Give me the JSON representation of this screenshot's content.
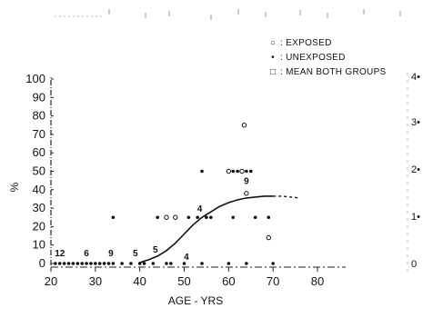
{
  "chart_data": {
    "type": "scatter",
    "title": "",
    "xlabel": "AGE - YRS",
    "ylabel": "%",
    "xlim": [
      20,
      80
    ],
    "ylim": [
      0,
      100
    ],
    "x_ticks": [
      "20",
      "30",
      "40",
      "50",
      "60",
      "70",
      "80"
    ],
    "y_ticks": [
      "0",
      "10",
      "20",
      "30",
      "40",
      "50",
      "60",
      "70",
      "80",
      "90",
      "100"
    ],
    "right_ticks": [
      "0",
      "1•",
      "2•",
      "3•",
      "4•"
    ],
    "grid": false,
    "legend_position": "top-right",
    "legend": [
      {
        "marker": "○",
        "label": "EXPOSED"
      },
      {
        "marker": "•",
        "label": "UNEXPOSED"
      },
      {
        "marker": "□",
        "label": "MEAN  BOTH GROUPS"
      }
    ],
    "series": [
      {
        "name": "EXPOSED",
        "marker": "open-circle",
        "points": [
          [
            63.5,
            75
          ],
          [
            64,
            38
          ],
          [
            69,
            14
          ],
          [
            46,
            25
          ],
          [
            48,
            25
          ],
          [
            60,
            50
          ],
          [
            63,
            50
          ]
        ]
      },
      {
        "name": "UNEXPOSED",
        "marker": "dot",
        "points": [
          [
            34,
            25
          ],
          [
            44,
            25
          ],
          [
            51,
            25
          ],
          [
            53,
            25
          ],
          [
            54,
            50
          ],
          [
            55,
            25
          ],
          [
            56,
            25
          ],
          [
            61,
            50
          ],
          [
            62,
            50
          ],
          [
            64,
            50
          ],
          [
            65,
            50
          ],
          [
            61,
            25
          ],
          [
            66,
            25
          ],
          [
            69,
            25
          ],
          [
            21,
            0
          ],
          [
            22,
            0
          ],
          [
            23,
            0
          ],
          [
            24,
            0
          ],
          [
            25,
            0
          ],
          [
            26,
            0
          ],
          [
            27,
            0
          ],
          [
            28,
            0
          ],
          [
            29,
            0
          ],
          [
            30,
            0
          ],
          [
            31,
            0
          ],
          [
            32,
            0
          ],
          [
            33,
            0
          ],
          [
            34,
            0
          ],
          [
            36,
            0
          ],
          [
            38,
            0
          ],
          [
            40,
            0
          ],
          [
            41,
            0
          ],
          [
            43,
            0
          ],
          [
            46,
            0
          ],
          [
            47,
            0
          ],
          [
            50,
            0
          ],
          [
            54,
            0
          ],
          [
            60,
            0
          ],
          [
            64,
            0
          ],
          [
            70,
            0
          ]
        ]
      },
      {
        "name": "MEAN  BOTH GROUPS",
        "marker": "curve",
        "points": [
          [
            40,
            0.5
          ],
          [
            42,
            2
          ],
          [
            44,
            4
          ],
          [
            46,
            7
          ],
          [
            48,
            11
          ],
          [
            50,
            16
          ],
          [
            52,
            21
          ],
          [
            54,
            25
          ],
          [
            56,
            28
          ],
          [
            58,
            31
          ],
          [
            60,
            33
          ],
          [
            62,
            34.5
          ],
          [
            64,
            35.5
          ],
          [
            66,
            36
          ],
          [
            68,
            36.5
          ],
          [
            70,
            36.5
          ]
        ],
        "dashed_extension": [
          [
            70,
            36.5
          ],
          [
            72,
            36.5
          ],
          [
            74,
            36
          ],
          [
            76,
            35.5
          ]
        ]
      }
    ],
    "annotations": [
      {
        "text": "12",
        "x": 22,
        "y": 4
      },
      {
        "text": "6",
        "x": 28,
        "y": 4
      },
      {
        "text": "9",
        "x": 33.5,
        "y": 4
      },
      {
        "text": "5",
        "x": 39,
        "y": 4
      },
      {
        "text": "5",
        "x": 43.5,
        "y": 6
      },
      {
        "text": "4",
        "x": 50.5,
        "y": 2
      },
      {
        "text": "4",
        "x": 53.5,
        "y": 28
      },
      {
        "text": "9",
        "x": 64,
        "y": 43
      }
    ]
  }
}
